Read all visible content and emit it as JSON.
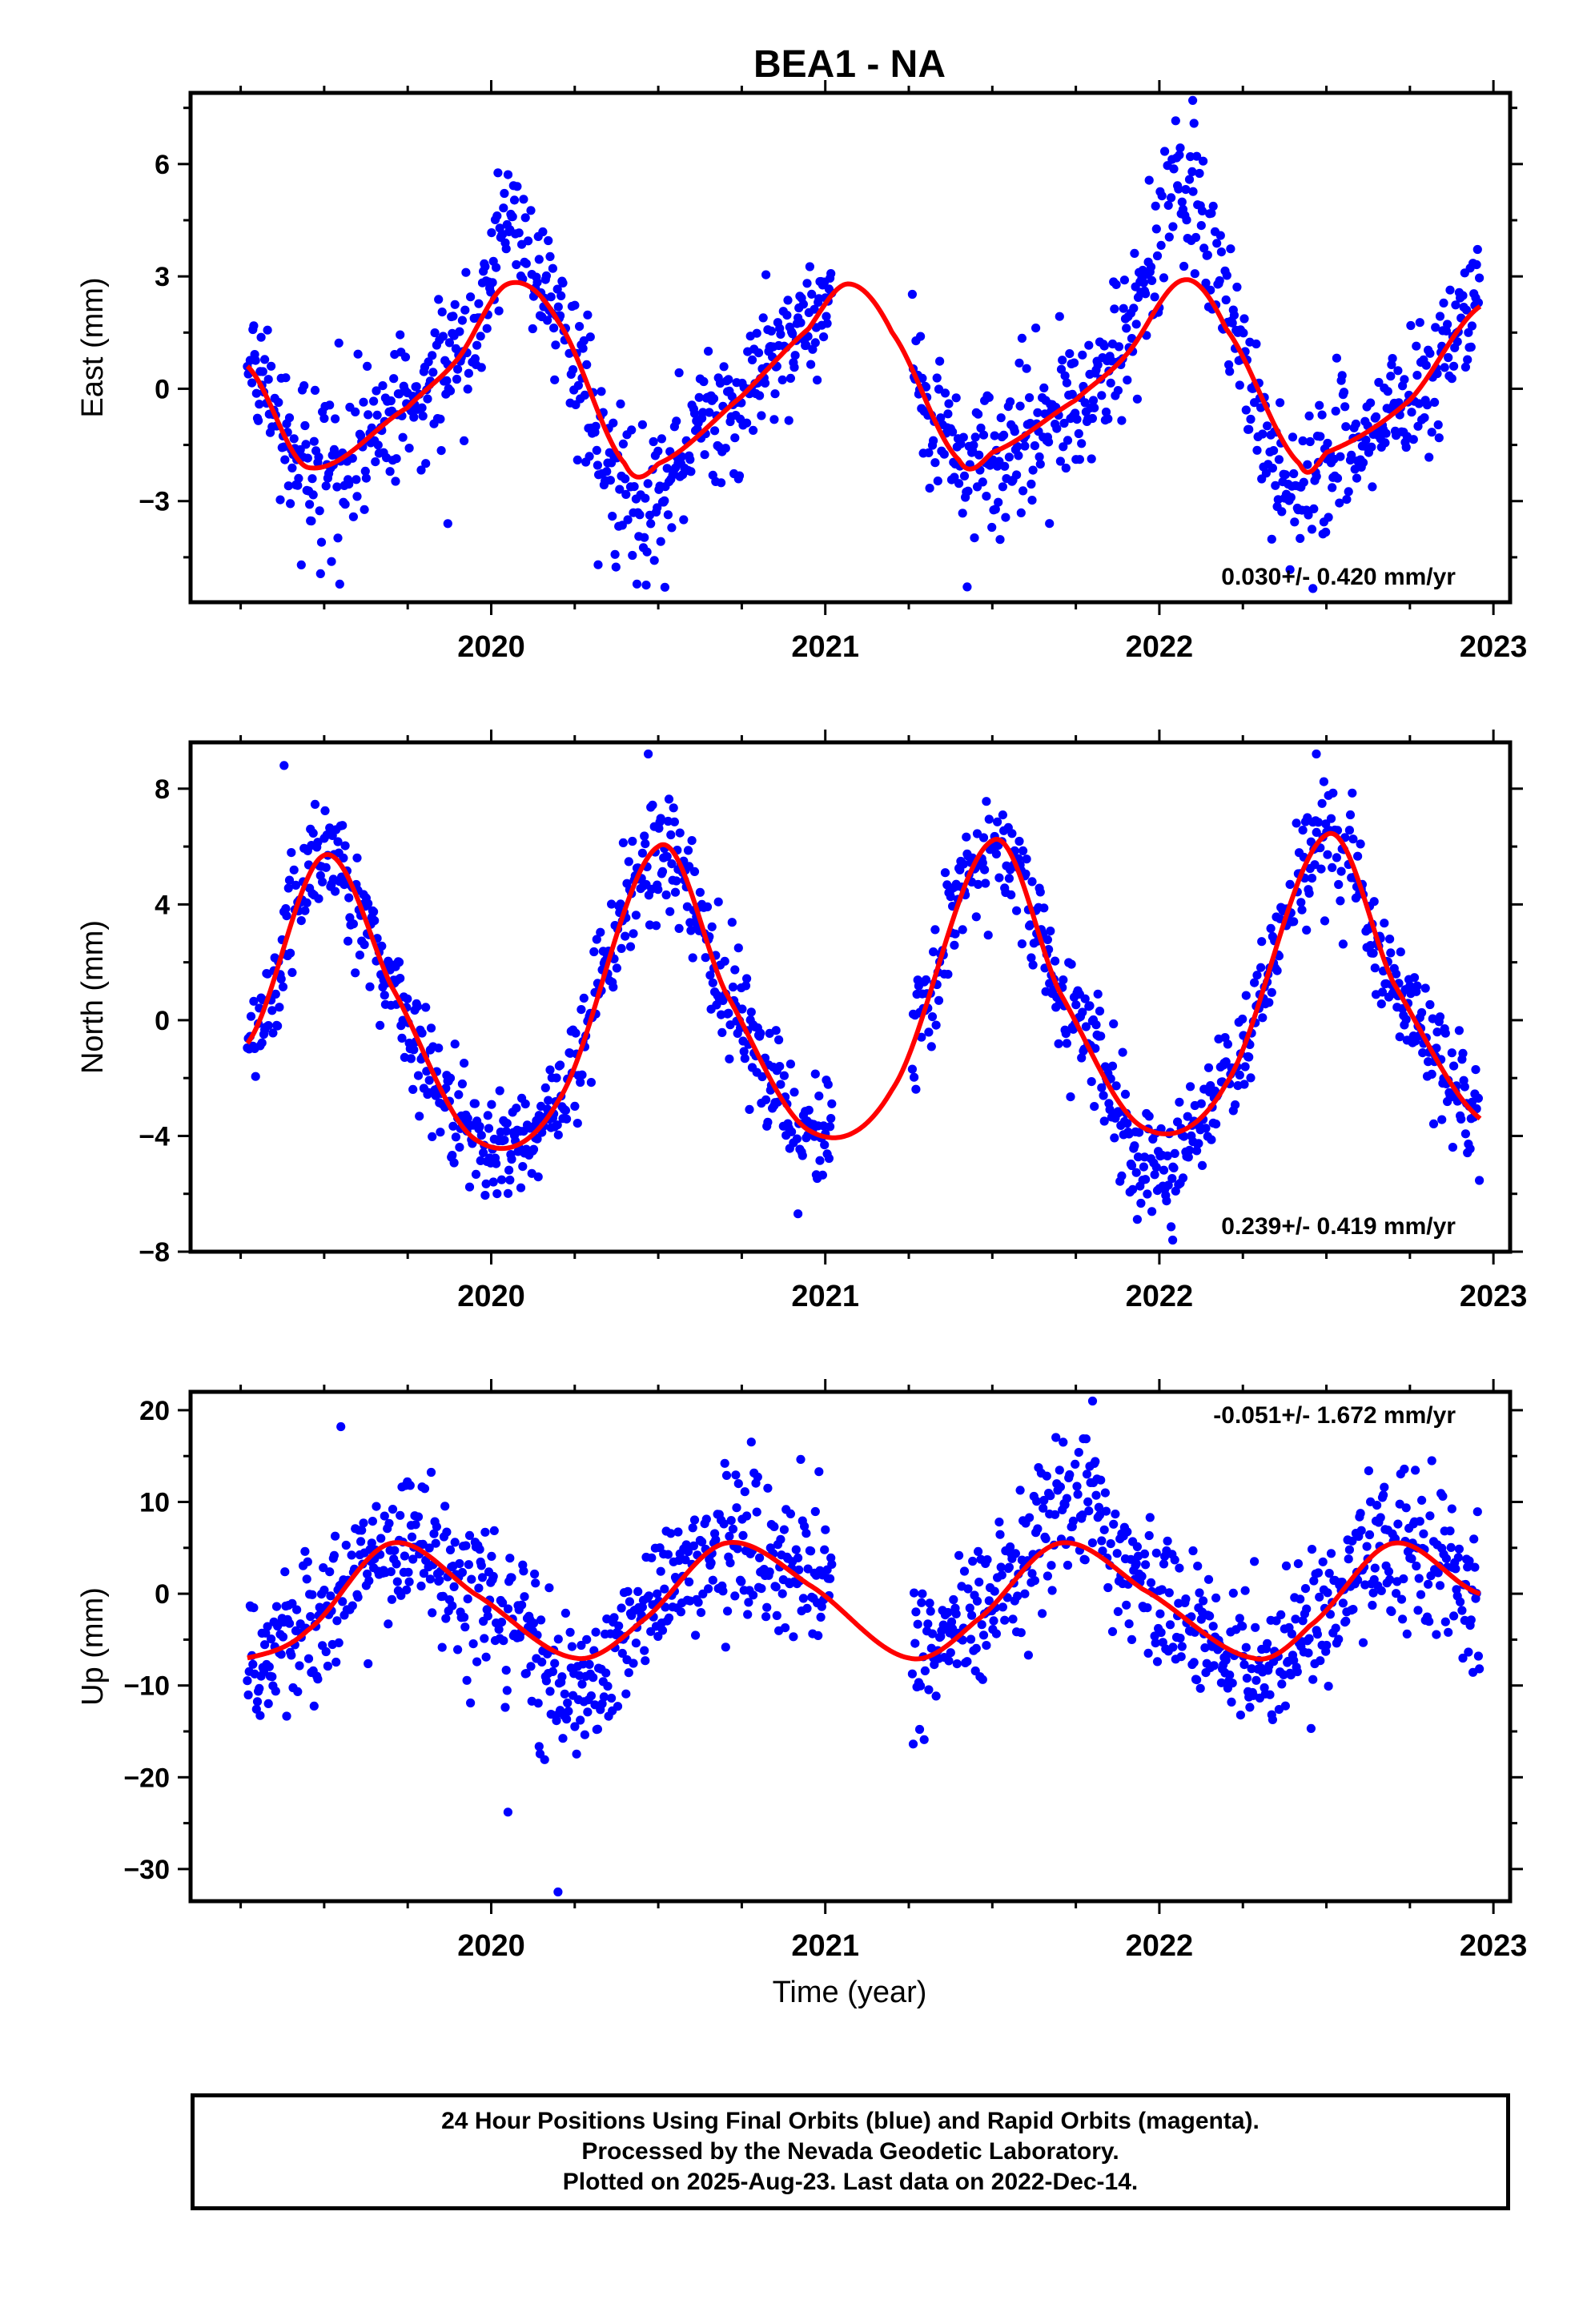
{
  "title": "BEA1 - NA",
  "xlabel": "Time (year)",
  "colors": {
    "final_orbits": "#0000ff",
    "fit": "#ff0000",
    "frame": "#000000"
  },
  "footer": {
    "line1": "24 Hour Positions Using Final Orbits (blue) and Rapid Orbits (magenta).",
    "line2": "Processed by the Nevada Geodetic Laboratory.",
    "line3": "Plotted on 2025-Aug-23. Last data on 2022-Dec-14."
  },
  "chart_data": [
    {
      "type": "scatter",
      "component": "east",
      "ylabel": "East (mm)",
      "xlim": [
        2019.1,
        2023.05
      ],
      "ylim": [
        -5.7,
        7.9
      ],
      "xticks": [
        2020,
        2021,
        2022,
        2023
      ],
      "xticks_minor": [
        2019.25,
        2019.5,
        2019.75,
        2020.25,
        2020.5,
        2020.75,
        2021.25,
        2021.5,
        2021.75,
        2022.25,
        2022.5,
        2022.75
      ],
      "yticks": [
        -3,
        0,
        3,
        6
      ],
      "yticks_minor": [
        -4.5,
        -1.5,
        1.5,
        4.5,
        7.5
      ],
      "rate_label": "0.030+/- 0.420 mm/yr",
      "data_span": [
        2019.27,
        2022.96
      ],
      "gap": [
        2021.02,
        2021.26
      ],
      "fit": {
        "x": [
          2019.27,
          2019.45,
          2019.75,
          2019.9,
          2020.05,
          2020.2,
          2020.4,
          2020.5,
          2020.75,
          2020.95,
          2021.07,
          2021.2,
          2021.4,
          2021.5,
          2021.75,
          2021.9,
          2022.07,
          2022.2,
          2022.42,
          2022.5,
          2022.75,
          2022.96
        ],
        "y": [
          0.6,
          -2.1,
          -0.5,
          0.8,
          2.8,
          1.8,
          -2.0,
          -2.0,
          -0.2,
          1.6,
          2.8,
          1.5,
          -1.9,
          -1.7,
          -0.3,
          0.9,
          2.9,
          1.6,
          -2.0,
          -1.7,
          -0.3,
          2.2
        ]
      },
      "residual_sd": 0.95,
      "spikes": [
        [
          2019.95,
          2020.15,
          2.2
        ],
        [
          2021.85,
          2022.25,
          2.6
        ],
        [
          2020.25,
          2020.6,
          -1.3
        ],
        [
          2022.25,
          2022.55,
          -1.4
        ]
      ],
      "outliers": [
        [
          2020.52,
          -5.3
        ],
        [
          2022.1,
          7.7
        ],
        [
          2019.87,
          -3.6
        ],
        [
          2020.32,
          -4.7
        ]
      ]
    },
    {
      "type": "scatter",
      "component": "north",
      "ylabel": "North (mm)",
      "xlim": [
        2019.1,
        2023.05
      ],
      "ylim": [
        -8.0,
        9.6
      ],
      "xticks": [
        2020,
        2021,
        2022,
        2023
      ],
      "xticks_minor": [
        2019.25,
        2019.5,
        2019.75,
        2020.25,
        2020.5,
        2020.75,
        2021.25,
        2021.5,
        2021.75,
        2022.25,
        2022.5,
        2022.75
      ],
      "yticks": [
        -8,
        -4,
        0,
        4,
        8
      ],
      "yticks_minor": [
        -6,
        -2,
        2,
        6
      ],
      "rate_label": "0.239+/- 0.419 mm/yr",
      "data_span": [
        2019.27,
        2022.96
      ],
      "gap": [
        2021.02,
        2021.26
      ],
      "fit": {
        "x": [
          2019.27,
          2019.5,
          2019.7,
          2019.95,
          2020.2,
          2020.5,
          2020.7,
          2020.95,
          2021.2,
          2021.5,
          2021.7,
          2021.95,
          2022.2,
          2022.5,
          2022.7,
          2022.96
        ],
        "y": [
          -0.8,
          5.7,
          1.2,
          -4.1,
          -2.8,
          6.0,
          1.0,
          -3.8,
          -2.4,
          6.2,
          1.0,
          -3.7,
          -2.2,
          6.4,
          1.3,
          -3.4
        ]
      },
      "residual_sd": 1.0,
      "spikes": [
        [
          2021.8,
          2022.15,
          -1.3
        ]
      ],
      "outliers": [
        [
          2022.04,
          -7.6
        ],
        [
          2020.47,
          9.2
        ],
        [
          2022.47,
          9.2
        ],
        [
          2019.38,
          8.8
        ]
      ]
    },
    {
      "type": "scatter",
      "component": "up",
      "ylabel": "Up (mm)",
      "xlim": [
        2019.1,
        2023.05
      ],
      "ylim": [
        -33.5,
        22.0
      ],
      "xticks": [
        2020,
        2021,
        2022,
        2023
      ],
      "xticks_minor": [
        2019.25,
        2019.5,
        2019.75,
        2020.25,
        2020.5,
        2020.75,
        2021.25,
        2021.5,
        2021.75,
        2022.25,
        2022.5,
        2022.75
      ],
      "yticks": [
        -30,
        -20,
        -10,
        0,
        10,
        20
      ],
      "yticks_minor": [
        -25,
        -15,
        -5,
        5,
        15
      ],
      "rate_label": "-0.051+/- 1.672 mm/yr",
      "data_span": [
        2019.27,
        2022.96
      ],
      "gap": [
        2021.02,
        2021.26
      ],
      "fit": {
        "x": [
          2019.27,
          2019.45,
          2019.7,
          2019.95,
          2020.25,
          2020.45,
          2020.7,
          2020.95,
          2021.25,
          2021.45,
          2021.7,
          2021.95,
          2022.28,
          2022.45,
          2022.7,
          2022.96
        ],
        "y": [
          -7.0,
          -4.0,
          5.5,
          0.0,
          -7.0,
          -3.0,
          5.5,
          1.0,
          -7.0,
          -3.0,
          5.5,
          0.5,
          -7.0,
          -3.5,
          5.5,
          0.0
        ]
      },
      "residual_sd": 4.0,
      "spikes": [
        [
          2021.55,
          2022.0,
          5.0
        ],
        [
          2020.1,
          2020.4,
          -4.0
        ]
      ],
      "outliers": [
        [
          2020.2,
          -32.5
        ],
        [
          2021.8,
          21.0
        ],
        [
          2020.05,
          -23.8
        ],
        [
          2019.55,
          18.2
        ]
      ]
    }
  ]
}
